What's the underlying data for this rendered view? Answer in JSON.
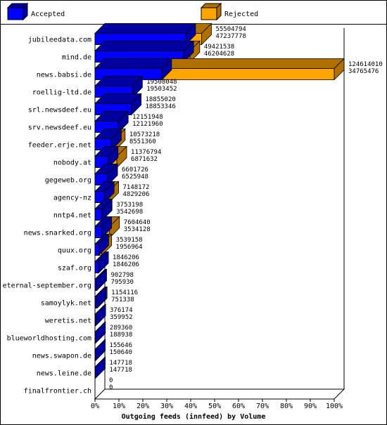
{
  "chart_data": {
    "type": "bar",
    "title": "Outgoing feeds (innfeed) by Volume",
    "legend": {
      "position": "top",
      "entries": [
        {
          "name": "Accepted",
          "color": "#0000ff"
        },
        {
          "name": "Rejected",
          "color": "#ffa500"
        }
      ]
    },
    "x_ticks": [
      "0%",
      "10%",
      "20%",
      "30%",
      "40%",
      "50%",
      "60%",
      "70%",
      "80%",
      "90%",
      "100%"
    ],
    "xlim": [
      0,
      124614010
    ],
    "categories": [
      {
        "label": "jubileedata.com",
        "offered": "55504794",
        "accepted": "47237778"
      },
      {
        "label": "mind.de",
        "offered": "49421538",
        "accepted": "46204628"
      },
      {
        "label": "news.babsi.de",
        "offered": "124614010",
        "accepted": "34765476"
      },
      {
        "label": "roellig-ltd.de",
        "offered": "19508048",
        "accepted": "19503452"
      },
      {
        "label": "srl.newsdeef.eu",
        "offered": "18855020",
        "accepted": "18853346"
      },
      {
        "label": "srv.newsdeef.eu",
        "offered": "12151948",
        "accepted": "12121960"
      },
      {
        "label": "feeder.erje.net",
        "offered": "10573218",
        "accepted": "8551360"
      },
      {
        "label": "nobody.at",
        "offered": "11376794",
        "accepted": "6871632"
      },
      {
        "label": "gegeweb.org",
        "offered": "6601726",
        "accepted": "6525948"
      },
      {
        "label": "agency-nz",
        "offered": "7148172",
        "accepted": "4829206"
      },
      {
        "label": "nntp4.net",
        "offered": "3753198",
        "accepted": "3542698"
      },
      {
        "label": "news.snarked.org",
        "offered": "7604640",
        "accepted": "3534128"
      },
      {
        "label": "quux.org",
        "offered": "3539158",
        "accepted": "1956964"
      },
      {
        "label": "szaf.org",
        "offered": "1846206",
        "accepted": "1846206"
      },
      {
        "label": "eternal-september.org",
        "offered": "902798",
        "accepted": "795930"
      },
      {
        "label": "samoylyk.net",
        "offered": "1154116",
        "accepted": "751338"
      },
      {
        "label": "weretis.net",
        "offered": "376174",
        "accepted": "359952"
      },
      {
        "label": "blueworldhosting.com",
        "offered": "289360",
        "accepted": "188938"
      },
      {
        "label": "news.swapon.de",
        "offered": "155646",
        "accepted": "150640"
      },
      {
        "label": "news.leine.de",
        "offered": "147718",
        "accepted": "147718"
      },
      {
        "label": "finalfrontier.ch",
        "offered": "0",
        "accepted": "0"
      }
    ]
  }
}
